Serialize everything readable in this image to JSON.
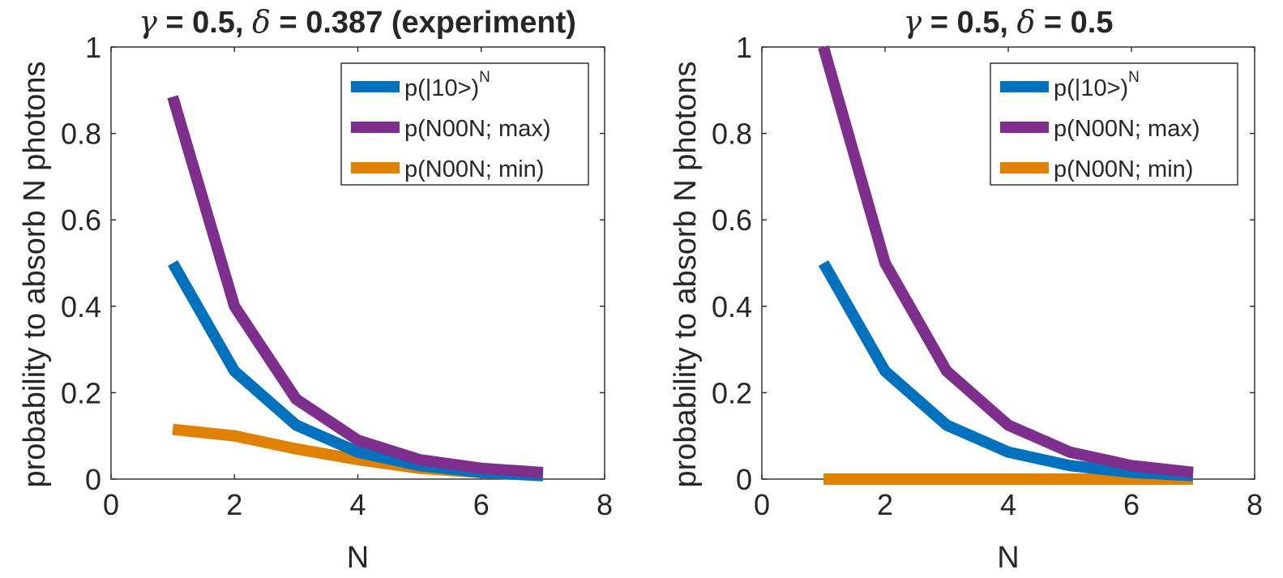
{
  "chart_data": [
    {
      "type": "line",
      "title": "γ = 0.5, δ = 0.387 (experiment)",
      "title_parts": {
        "gamma_sym": "γ",
        "gamma_val": " = 0.5, ",
        "delta_sym": "δ",
        "delta_val": " = 0.387 (experiment)"
      },
      "xlabel": "N",
      "ylabel": "probability to absorb N photons",
      "xlim": [
        0,
        8
      ],
      "ylim": [
        0,
        1
      ],
      "xticks": [
        "0",
        "2",
        "4",
        "6",
        "8"
      ],
      "yticks": [
        "0",
        "0.2",
        "0.4",
        "0.6",
        "0.8",
        "1"
      ],
      "legend_position": "top-right",
      "x": [
        1,
        2,
        3,
        4,
        5,
        6,
        7
      ],
      "series": [
        {
          "name": "p(|10>)",
          "sup": "N",
          "color": "#0072BD",
          "values": [
            0.5,
            0.25,
            0.125,
            0.0625,
            0.03125,
            0.015625,
            0.0078125
          ]
        },
        {
          "name": "p(N00N; max)",
          "sup": "",
          "color": "#7E2F8E",
          "values": [
            0.885,
            0.4,
            0.185,
            0.09,
            0.045,
            0.025,
            0.015
          ]
        },
        {
          "name": "p(N00N; min)",
          "sup": "",
          "color": "#D95319",
          "values": [
            0.115,
            0.1,
            0.07,
            0.045,
            0.025,
            0.015,
            0.008
          ]
        }
      ]
    },
    {
      "type": "line",
      "title": "γ = 0.5, δ = 0.5",
      "title_parts": {
        "gamma_sym": "γ",
        "gamma_val": " = 0.5, ",
        "delta_sym": "δ",
        "delta_val": " = 0.5"
      },
      "xlabel": "N",
      "ylabel": "probability to absorb N photons",
      "xlim": [
        0,
        8
      ],
      "ylim": [
        0,
        1
      ],
      "xticks": [
        "0",
        "2",
        "4",
        "6",
        "8"
      ],
      "yticks": [
        "0",
        "0.2",
        "0.4",
        "0.6",
        "0.8",
        "1"
      ],
      "legend_position": "top-right",
      "x": [
        1,
        2,
        3,
        4,
        5,
        6,
        7
      ],
      "series": [
        {
          "name": "p(|10>)",
          "sup": "N",
          "color": "#0072BD",
          "values": [
            0.5,
            0.25,
            0.125,
            0.0625,
            0.03125,
            0.015625,
            0.0078125
          ]
        },
        {
          "name": "p(N00N; max)",
          "sup": "",
          "color": "#7E2F8E",
          "values": [
            1.0,
            0.5,
            0.25,
            0.125,
            0.0625,
            0.03125,
            0.015625
          ]
        },
        {
          "name": "p(N00N; min)",
          "sup": "",
          "color": "#D95319",
          "values": [
            0,
            0,
            0,
            0,
            0,
            0,
            0
          ]
        }
      ]
    }
  ]
}
